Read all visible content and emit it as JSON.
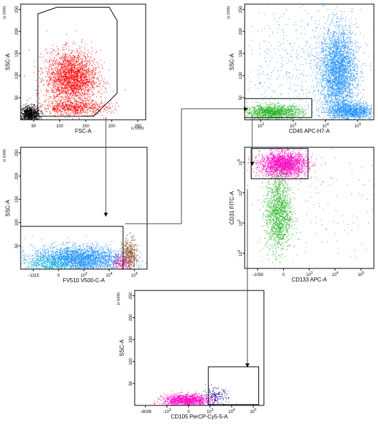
{
  "chart_data": [
    {
      "id": "p1",
      "type": "scatter",
      "xlabel": "FSC-A",
      "ylabel": "SSC-A",
      "x_scale_note": "(x 1000)",
      "y_scale_note": "(x 1000)",
      "x_ticks": [
        "50",
        "100",
        "150",
        "200",
        "250"
      ],
      "y_ticks": [
        "50",
        "100",
        "150",
        "200",
        "250"
      ],
      "xlim": [
        25,
        265
      ],
      "ylim": [
        0,
        262
      ],
      "series": [
        {
          "color": "#000000",
          "count": 900,
          "center": [
            42,
            12
          ],
          "spread": [
            10,
            10
          ],
          "regions": "debris"
        },
        {
          "color": "#ff0000",
          "count": 2600,
          "center": [
            122,
            95
          ],
          "spread": [
            24,
            30
          ],
          "regions": "main"
        },
        {
          "color": "#ff0000",
          "count": 700,
          "center": [
            130,
            28
          ],
          "spread": [
            32,
            8
          ],
          "regions": "tail"
        }
      ],
      "gate": {
        "type": "polygon",
        "points": [
          [
            58,
            240
          ],
          [
            95,
            255
          ],
          [
            195,
            255
          ],
          [
            210,
            225
          ],
          [
            210,
            60
          ],
          [
            165,
            8
          ],
          [
            58,
            8
          ]
        ]
      }
    },
    {
      "id": "p2",
      "type": "scatter",
      "xlabel": "CD45 APC-H7-A",
      "ylabel": "SSC-A",
      "y_scale_note": "(x 1000)",
      "x_ticks": [
        "10^2",
        "10^3",
        "10^4",
        "10^5"
      ],
      "y_ticks": [
        "50",
        "100",
        "150",
        "200",
        "250"
      ],
      "xlim": [
        0,
        1
      ],
      "ylim": [
        0,
        262
      ],
      "series": [
        {
          "color": "#1e90ff",
          "count": 3200,
          "center": [
            0.72,
            110
          ],
          "spread": [
            0.07,
            50
          ],
          "regions": "granulocytes"
        },
        {
          "color": "#1e90ff",
          "count": 1200,
          "center": [
            0.82,
            20
          ],
          "spread": [
            0.09,
            10
          ],
          "regions": "lymph"
        },
        {
          "color": "#1e90ff",
          "count": 500,
          "center": [
            0.45,
            120
          ],
          "spread": [
            0.25,
            70
          ],
          "regions": "scatter"
        },
        {
          "color": "#22b422",
          "count": 1300,
          "center": [
            0.22,
            18
          ],
          "spread": [
            0.11,
            8
          ],
          "regions": "gate"
        }
      ],
      "gate": {
        "type": "rect",
        "x": [
          0.0,
          0.52
        ],
        "y": [
          5,
          48
        ]
      }
    },
    {
      "id": "p3",
      "type": "scatter",
      "xlabel": "FV510 V500-C-A",
      "ylabel": "SSC-A",
      "y_scale_note": "(x 1000)",
      "x_ticks": [
        "−1315",
        "0",
        "10^3",
        "10^4",
        "10^5"
      ],
      "y_ticks": [
        "50",
        "100",
        "150",
        "200",
        "250"
      ],
      "xlim": [
        0,
        1
      ],
      "ylim": [
        0,
        262
      ],
      "series": [
        {
          "color": "#1e90ff",
          "count": 3000,
          "center": [
            0.45,
            22
          ],
          "spread": [
            0.18,
            14
          ],
          "regions": "main"
        },
        {
          "color": "#00c8c8",
          "count": 300,
          "center": [
            0.22,
            12
          ],
          "spread": [
            0.12,
            8
          ],
          "regions": "left"
        },
        {
          "color": "#8b4513",
          "count": 450,
          "center": [
            0.86,
            30
          ],
          "spread": [
            0.03,
            18
          ],
          "regions": "dead"
        },
        {
          "color": "#ff1493",
          "count": 200,
          "center": [
            0.8,
            15
          ],
          "spread": [
            0.04,
            10
          ],
          "regions": "pink"
        }
      ],
      "gate": {
        "type": "rect",
        "x": [
          0.0,
          0.81
        ],
        "y": [
          0,
          92
        ]
      }
    },
    {
      "id": "p4",
      "type": "scatter",
      "xlabel": "CD133 APC-A",
      "ylabel": "CD31 FITC-A",
      "x_ticks": [
        "−1050",
        "0",
        "10^3",
        "10^4",
        "10^5"
      ],
      "y_ticks": [
        "10^2",
        "10^3",
        "10^4",
        "10^5"
      ],
      "xlim": [
        0,
        1
      ],
      "ylim": [
        0,
        1
      ],
      "series": [
        {
          "color": "#ff10c8",
          "count": 2400,
          "center": [
            0.3,
            0.86
          ],
          "spread": [
            0.09,
            0.05
          ],
          "regions": "cd31pos"
        },
        {
          "color": "#22b422",
          "count": 1500,
          "center": [
            0.26,
            0.46
          ],
          "spread": [
            0.05,
            0.16
          ],
          "regions": "cd31low"
        },
        {
          "color": "#22b422",
          "count": 150,
          "center": [
            0.55,
            0.55
          ],
          "spread": [
            0.3,
            0.3
          ],
          "regions": "scatter"
        }
      ],
      "gate": {
        "type": "rect",
        "x": [
          0.05,
          0.49
        ],
        "y": [
          0.74,
          0.99
        ]
      }
    },
    {
      "id": "p5",
      "type": "scatter",
      "xlabel": "CD105 PerCP-Cy5-5-A",
      "ylabel": "SSC-A",
      "y_scale_note": "(x 1000)",
      "x_ticks": [
        "−6039",
        "-10^3",
        "0",
        "10^3",
        "10^4",
        "10^5"
      ],
      "y_ticks": [
        "50",
        "100",
        "150",
        "200",
        "250"
      ],
      "xlim": [
        0,
        1
      ],
      "ylim": [
        0,
        262
      ],
      "series": [
        {
          "color": "#ff10c8",
          "count": 1400,
          "center": [
            0.4,
            12
          ],
          "spread": [
            0.09,
            7
          ],
          "regions": "neg"
        },
        {
          "color": "#00008b",
          "count": 170,
          "center": [
            0.62,
            20
          ],
          "spread": [
            0.05,
            10
          ],
          "regions": "cd105pos"
        }
      ],
      "gate": {
        "type": "rect",
        "x": [
          0.57,
          0.96
        ],
        "y": [
          2,
          88
        ]
      }
    }
  ]
}
